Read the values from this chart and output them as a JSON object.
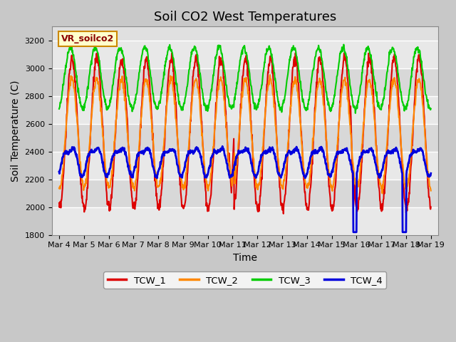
{
  "title": "Soil CO2 West Temperatures",
  "xlabel": "Time",
  "ylabel": "Soil Temperature (C)",
  "ylim": [
    1800,
    3300
  ],
  "xlim_days": [
    3.7,
    19.3
  ],
  "xtick_labels": [
    "Mar 4",
    "Mar 5",
    "Mar 6",
    "Mar 7",
    "Mar 8",
    "Mar 9",
    "Mar 10",
    "Mar 11",
    "Mar 12",
    "Mar 13",
    "Mar 14",
    "Mar 15",
    "Mar 16",
    "Mar 17",
    "Mar 18",
    "Mar 19"
  ],
  "xtick_positions": [
    4,
    5,
    6,
    7,
    8,
    9,
    10,
    11,
    12,
    13,
    14,
    15,
    16,
    17,
    18,
    19
  ],
  "series_colors": [
    "#dd0000",
    "#ff8800",
    "#00cc00",
    "#0000dd"
  ],
  "series_names": [
    "TCW_1",
    "TCW_2",
    "TCW_3",
    "TCW_4"
  ],
  "legend_label": "VR_soilco2",
  "title_fontsize": 13,
  "axis_label_fontsize": 10,
  "tick_fontsize": 8,
  "lw_main": 1.5,
  "lw_blue": 2.0
}
